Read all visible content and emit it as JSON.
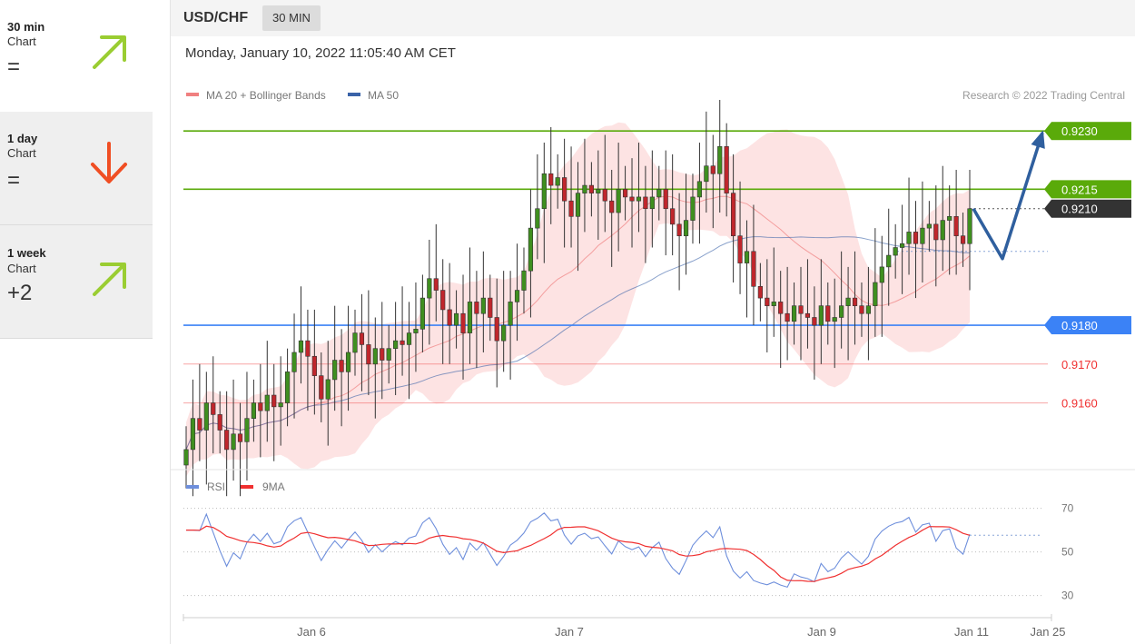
{
  "sidebar": {
    "items": [
      {
        "label": "30 min",
        "sub": "Chart",
        "score": "=",
        "direction": "up",
        "color": "#9acd32"
      },
      {
        "label": "1 day",
        "sub": "Chart",
        "score": "=",
        "direction": "down",
        "color": "#f04e23"
      },
      {
        "label": "1 week",
        "sub": "Chart",
        "score": "+2",
        "direction": "up",
        "color": "#9acd32"
      }
    ]
  },
  "header": {
    "symbol": "USD/CHF",
    "timeframe": "30 MIN",
    "datetime": "Monday, January 10, 2022 11:05:40 AM CET"
  },
  "chart_data": {
    "type": "candlestick",
    "legend": [
      {
        "name": "MA 20 + Bollinger Bands",
        "color": "#f08080"
      },
      {
        "name": "MA 50",
        "color": "#3a63a8"
      }
    ],
    "copyright": "Research © 2022 Trading Central",
    "y_range": [
      0.9144,
      0.9238
    ],
    "levels": [
      {
        "value": 0.923,
        "label": "0.9230",
        "kind": "resistance",
        "color": "#5aaa0a"
      },
      {
        "value": 0.9215,
        "label": "0.9215",
        "kind": "resistance",
        "color": "#5aaa0a"
      },
      {
        "value": 0.921,
        "label": "0.9210",
        "kind": "last",
        "color": "#333333"
      },
      {
        "value": 0.918,
        "label": "0.9180",
        "kind": "support",
        "color": "#3b82f6"
      },
      {
        "value": 0.917,
        "label": "0.9170",
        "kind": "support-weak",
        "color": "#f25c5c"
      },
      {
        "value": 0.916,
        "label": "0.9160",
        "kind": "support-weak",
        "color": "#f25c5c"
      }
    ],
    "scenario_path": [
      0.921,
      0.9199,
      0.923
    ],
    "x_labels": [
      "Jan 6",
      "Jan 7",
      "Jan 9",
      "Jan 11",
      "Jan 25"
    ],
    "rsi": {
      "legend": [
        {
          "name": "RSI",
          "color": "#6e8fdc"
        },
        {
          "name": "9MA",
          "color": "#f03030"
        }
      ],
      "levels": [
        "70",
        "50",
        "30"
      ],
      "range": [
        24,
        74
      ]
    },
    "candles": [
      0.9148,
      0.9156,
      0.9153,
      0.916,
      0.9157,
      0.9153,
      0.9148,
      0.9152,
      0.915,
      0.9156,
      0.916,
      0.9158,
      0.9162,
      0.9159,
      0.916,
      0.9168,
      0.9173,
      0.9176,
      0.9172,
      0.9167,
      0.9161,
      0.9166,
      0.9171,
      0.9168,
      0.9173,
      0.9178,
      0.9175,
      0.917,
      0.9174,
      0.9171,
      0.9174,
      0.9176,
      0.9175,
      0.9178,
      0.9179,
      0.9187,
      0.9192,
      0.9189,
      0.9184,
      0.918,
      0.9183,
      0.9178,
      0.9186,
      0.9183,
      0.9187,
      0.9182,
      0.9176,
      0.918,
      0.9186,
      0.9189,
      0.9194,
      0.9205,
      0.921,
      0.9219,
      0.9216,
      0.9218,
      0.9212,
      0.9208,
      0.9214,
      0.9216,
      0.9214,
      0.9215,
      0.9212,
      0.9209,
      0.9215,
      0.9213,
      0.9212,
      0.9213,
      0.921,
      0.9213,
      0.9215,
      0.921,
      0.9206,
      0.9203,
      0.9207,
      0.9213,
      0.9217,
      0.9221,
      0.9219,
      0.9226,
      0.9214,
      0.9203,
      0.9196,
      0.9199,
      0.919,
      0.9187,
      0.9185,
      0.9186,
      0.9183,
      0.9181,
      0.9185,
      0.9183,
      0.9182,
      0.918,
      0.9185,
      0.9181,
      0.9182,
      0.9185,
      0.9187,
      0.9185,
      0.9183,
      0.9185,
      0.9191,
      0.9195,
      0.9198,
      0.92,
      0.9201,
      0.9204,
      0.9201,
      0.9205,
      0.9206,
      0.9202,
      0.9207,
      0.9208,
      0.9203,
      0.9201,
      0.921
    ]
  }
}
